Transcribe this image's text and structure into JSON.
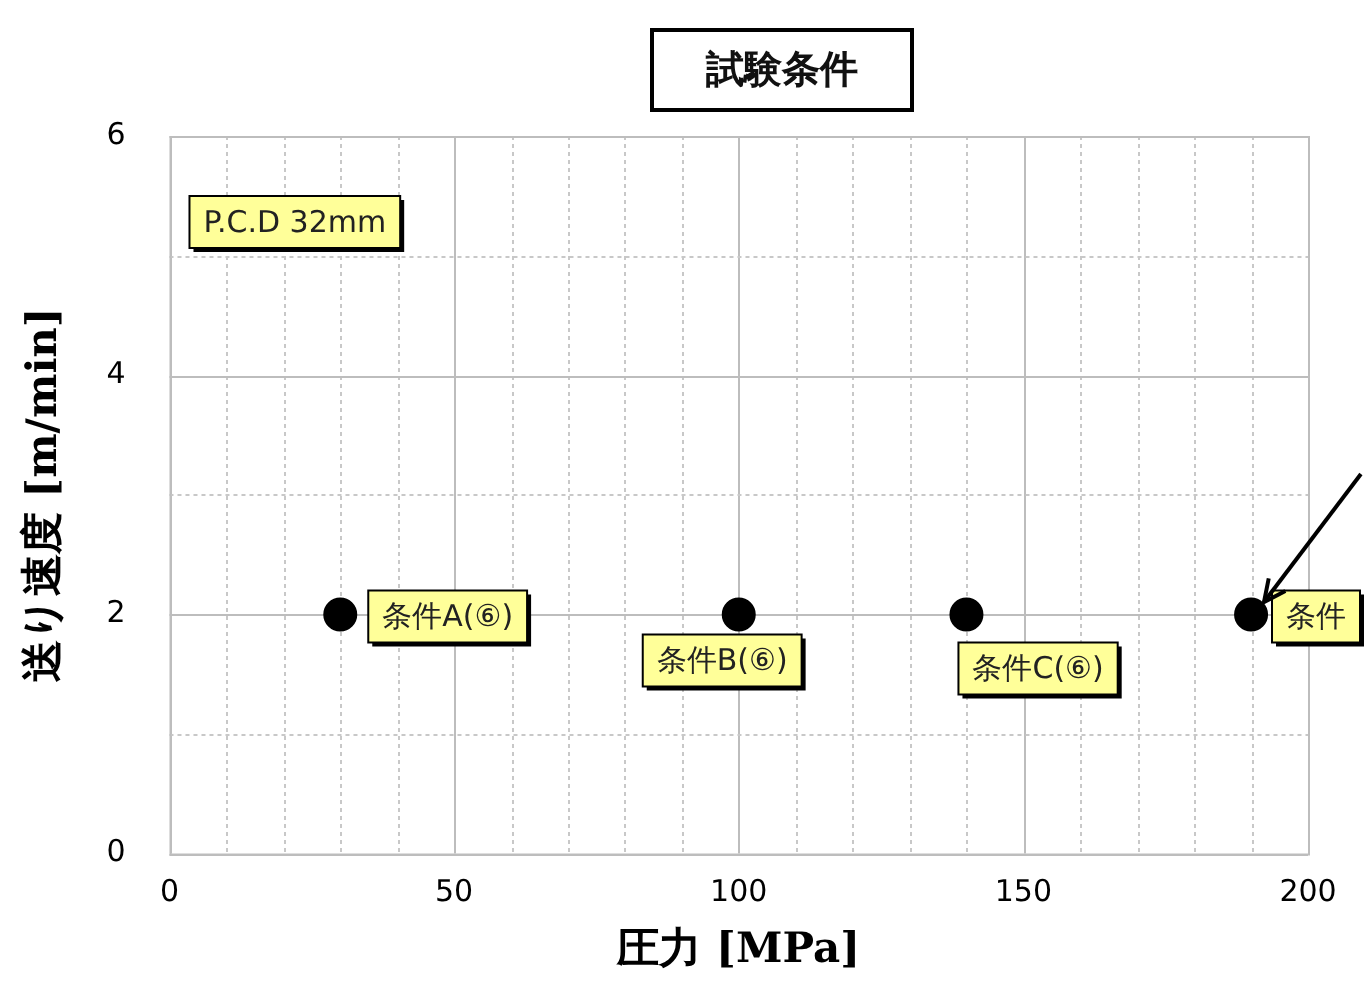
{
  "chart_data": {
    "type": "scatter",
    "title": "試験条件",
    "xlabel": "圧力 [MPa]",
    "ylabel": "送り速度 [m/min]",
    "x": [
      30,
      100,
      140,
      190
    ],
    "series": [
      {
        "color": "#000000",
        "values": [
          2,
          2,
          2,
          2
        ]
      }
    ],
    "marker": "circle",
    "grid": true,
    "legend": false,
    "xlim": [
      0,
      200
    ],
    "xticks": [
      0,
      {
        "value": 10,
        "label": null
      },
      {
        "value": 20,
        "label": null
      },
      {
        "value": 30,
        "label": null
      },
      {
        "value": 40,
        "label": null
      },
      50,
      {
        "value": 60,
        "label": null
      },
      {
        "value": 70,
        "label": null
      },
      {
        "value": 80,
        "label": null
      },
      {
        "value": 90,
        "label": null
      },
      100,
      {
        "value": 110,
        "label": null
      },
      {
        "value": 120,
        "label": null
      },
      {
        "value": 130,
        "label": null
      },
      {
        "value": 140,
        "label": null
      },
      150,
      {
        "value": 160,
        "label": null
      },
      {
        "value": 170,
        "label": null
      },
      {
        "value": 180,
        "label": null
      },
      {
        "value": 190,
        "label": null
      },
      200
    ],
    "ylim": [
      0,
      6
    ],
    "yticks": [
      0,
      {
        "value": 1,
        "label": null
      },
      2,
      {
        "value": 3,
        "label": null
      },
      4,
      {
        "value": 5,
        "label": null
      },
      6
    ],
    "annotations": [
      "P.C.D 32mm",
      {
        "text": "条件A(⑥)",
        "x": 30,
        "y": 2
      },
      {
        "text": "条件B(⑥)",
        "x": 100,
        "y": 2
      },
      {
        "text": "条件C(⑥)",
        "x": 140,
        "y": 2
      },
      {
        "text": "条件",
        "x": 190,
        "y": 2
      }
    ]
  }
}
